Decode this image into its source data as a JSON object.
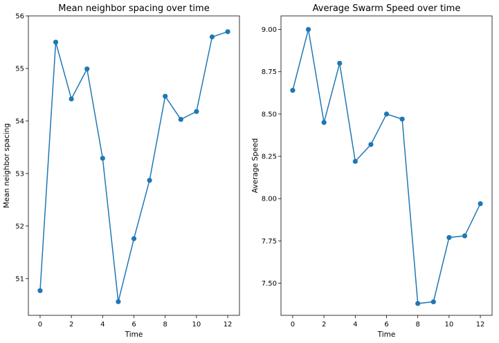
{
  "chart_data": [
    {
      "type": "line",
      "title": "Mean neighbor spacing over time",
      "xlabel": "Time",
      "ylabel": "Mean neighbor spacing",
      "color": "#1f77b4",
      "xlim": [
        -0.75,
        12.75
      ],
      "ylim": [
        50.3,
        56.0
      ],
      "xticks": [
        0,
        2,
        4,
        6,
        8,
        10,
        12
      ],
      "yticks": [
        51,
        52,
        53,
        54,
        55,
        56
      ],
      "ytick_decimals": 0,
      "x": [
        0,
        1,
        2,
        3,
        4,
        5,
        6,
        7,
        8,
        9,
        10,
        11,
        12
      ],
      "y": [
        50.77,
        55.5,
        54.42,
        54.99,
        53.29,
        50.56,
        51.76,
        52.87,
        54.47,
        54.03,
        54.18,
        55.6,
        55.7
      ]
    },
    {
      "type": "line",
      "title": "Average Swarm Speed over time",
      "xlabel": "Time",
      "ylabel": "Average Speed",
      "color": "#1f77b4",
      "xlim": [
        -0.75,
        12.75
      ],
      "ylim": [
        7.31,
        9.08
      ],
      "xticks": [
        0,
        2,
        4,
        6,
        8,
        10,
        12
      ],
      "yticks": [
        7.5,
        7.75,
        8.0,
        8.25,
        8.5,
        8.75,
        9.0
      ],
      "ytick_decimals": 2,
      "x": [
        0,
        1,
        2,
        3,
        4,
        5,
        6,
        7,
        8,
        9,
        10,
        11,
        12
      ],
      "y": [
        8.64,
        9.0,
        8.45,
        8.8,
        8.22,
        8.32,
        8.5,
        8.47,
        7.38,
        7.39,
        7.77,
        7.78,
        7.97
      ]
    }
  ]
}
